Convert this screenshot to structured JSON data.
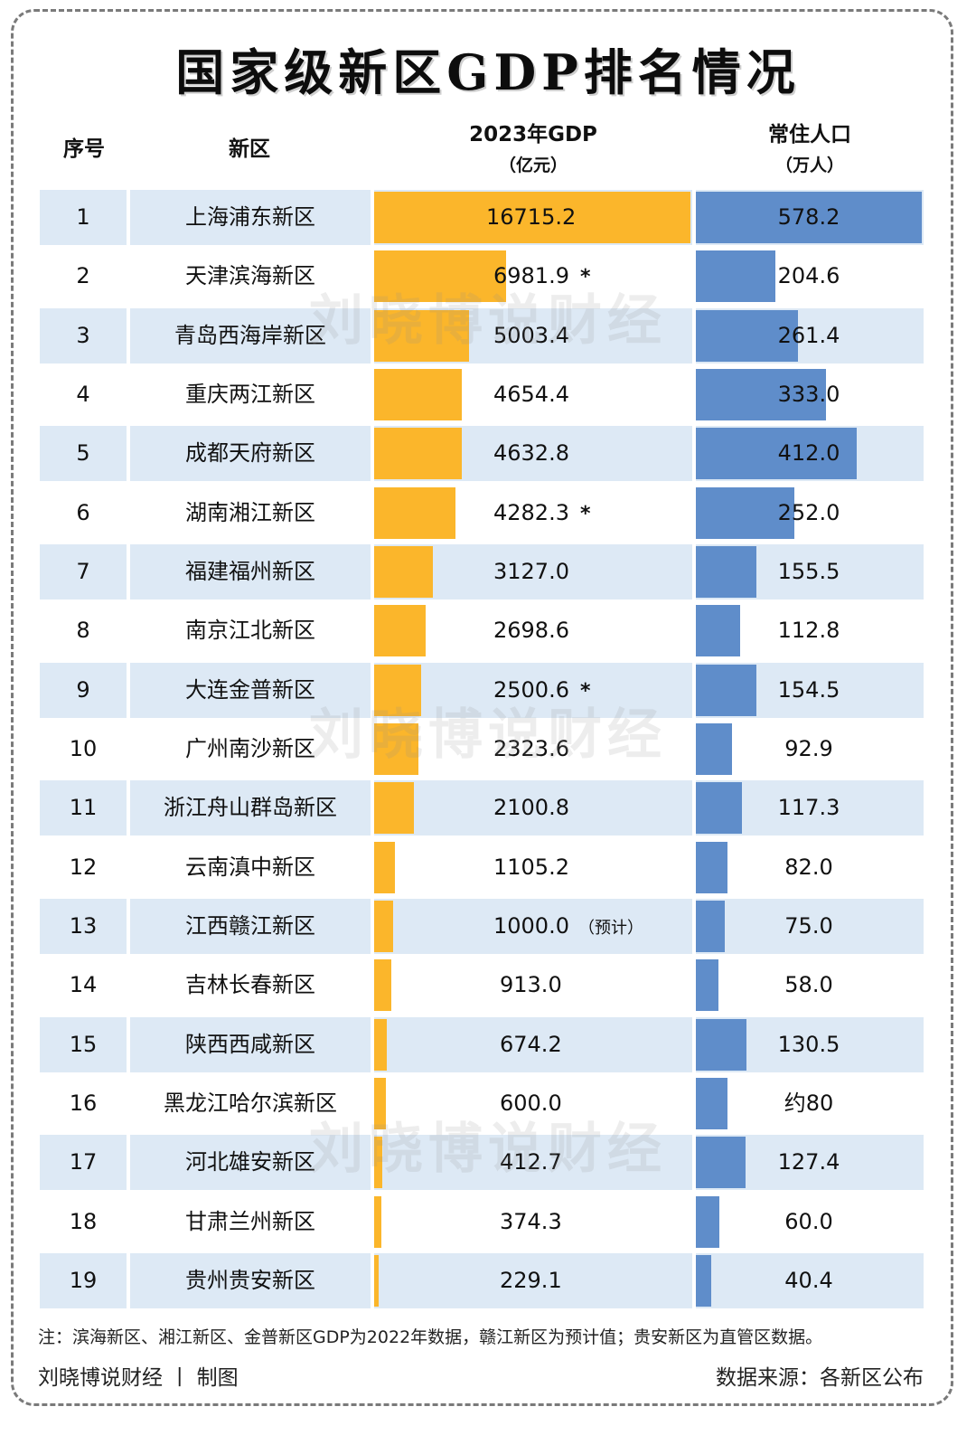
{
  "title": "国家级新区GDP排名情况",
  "headers": {
    "rank": "序号",
    "name": "新区",
    "gdp_line1": "2023年GDP",
    "gdp_line2": "（亿元）",
    "pop_line1": "常住人口",
    "pop_line2": "（万人）"
  },
  "colors": {
    "gdp_bar": "#fbb62b",
    "pop_bar": "#5f8dca",
    "row_shade": "#dde9f5"
  },
  "watermark": "刘晓博说财经",
  "chart_data": {
    "type": "table",
    "columns": [
      "序号",
      "新区",
      "2023年GDP（亿元）",
      "常住人口（万人）"
    ],
    "rows": [
      {
        "rank": "1",
        "name": "上海浦东新区",
        "gdp": 16715.2,
        "gdp_label": "16715.2",
        "gdp_mark": "",
        "gdp_note": "",
        "pop": 578.2,
        "pop_label": "578.2"
      },
      {
        "rank": "2",
        "name": "天津滨海新区",
        "gdp": 6981.9,
        "gdp_label": "6981.9",
        "gdp_mark": "*",
        "gdp_note": "",
        "pop": 204.6,
        "pop_label": "204.6"
      },
      {
        "rank": "3",
        "name": "青岛西海岸新区",
        "gdp": 5003.4,
        "gdp_label": "5003.4",
        "gdp_mark": "",
        "gdp_note": "",
        "pop": 261.4,
        "pop_label": "261.4"
      },
      {
        "rank": "4",
        "name": "重庆两江新区",
        "gdp": 4654.4,
        "gdp_label": "4654.4",
        "gdp_mark": "",
        "gdp_note": "",
        "pop": 333.0,
        "pop_label": "333.0"
      },
      {
        "rank": "5",
        "name": "成都天府新区",
        "gdp": 4632.8,
        "gdp_label": "4632.8",
        "gdp_mark": "",
        "gdp_note": "",
        "pop": 412.0,
        "pop_label": "412.0"
      },
      {
        "rank": "6",
        "name": "湖南湘江新区",
        "gdp": 4282.3,
        "gdp_label": "4282.3",
        "gdp_mark": "*",
        "gdp_note": "",
        "pop": 252.0,
        "pop_label": "252.0"
      },
      {
        "rank": "7",
        "name": "福建福州新区",
        "gdp": 3127.0,
        "gdp_label": "3127.0",
        "gdp_mark": "",
        "gdp_note": "",
        "pop": 155.5,
        "pop_label": "155.5"
      },
      {
        "rank": "8",
        "name": "南京江北新区",
        "gdp": 2698.6,
        "gdp_label": "2698.6",
        "gdp_mark": "",
        "gdp_note": "",
        "pop": 112.8,
        "pop_label": "112.8"
      },
      {
        "rank": "9",
        "name": "大连金普新区",
        "gdp": 2500.6,
        "gdp_label": "2500.6",
        "gdp_mark": "*",
        "gdp_note": "",
        "pop": 154.5,
        "pop_label": "154.5"
      },
      {
        "rank": "10",
        "name": "广州南沙新区",
        "gdp": 2323.6,
        "gdp_label": "2323.6",
        "gdp_mark": "",
        "gdp_note": "",
        "pop": 92.9,
        "pop_label": "92.9"
      },
      {
        "rank": "11",
        "name": "浙江舟山群岛新区",
        "gdp": 2100.8,
        "gdp_label": "2100.8",
        "gdp_mark": "",
        "gdp_note": "",
        "pop": 117.3,
        "pop_label": "117.3"
      },
      {
        "rank": "12",
        "name": "云南滇中新区",
        "gdp": 1105.2,
        "gdp_label": "1105.2",
        "gdp_mark": "",
        "gdp_note": "",
        "pop": 82.0,
        "pop_label": "82.0"
      },
      {
        "rank": "13",
        "name": "江西赣江新区",
        "gdp": 1000.0,
        "gdp_label": "1000.0",
        "gdp_mark": "",
        "gdp_note": "（预计）",
        "pop": 75.0,
        "pop_label": "75.0"
      },
      {
        "rank": "14",
        "name": "吉林长春新区",
        "gdp": 913.0,
        "gdp_label": "913.0",
        "gdp_mark": "",
        "gdp_note": "",
        "pop": 58.0,
        "pop_label": "58.0"
      },
      {
        "rank": "15",
        "name": "陕西西咸新区",
        "gdp": 674.2,
        "gdp_label": "674.2",
        "gdp_mark": "",
        "gdp_note": "",
        "pop": 130.5,
        "pop_label": "130.5"
      },
      {
        "rank": "16",
        "name": "黑龙江哈尔滨新区",
        "gdp": 600.0,
        "gdp_label": "600.0",
        "gdp_mark": "",
        "gdp_note": "",
        "pop": 80,
        "pop_label": "约80"
      },
      {
        "rank": "17",
        "name": "河北雄安新区",
        "gdp": 412.7,
        "gdp_label": "412.7",
        "gdp_mark": "",
        "gdp_note": "",
        "pop": 127.4,
        "pop_label": "127.4"
      },
      {
        "rank": "18",
        "name": "甘肃兰州新区",
        "gdp": 374.3,
        "gdp_label": "374.3",
        "gdp_mark": "",
        "gdp_note": "",
        "pop": 60.0,
        "pop_label": "60.0"
      },
      {
        "rank": "19",
        "name": "贵州贵安新区",
        "gdp": 229.1,
        "gdp_label": "229.1",
        "gdp_mark": "",
        "gdp_note": "",
        "pop": 40.4,
        "pop_label": "40.4"
      }
    ]
  },
  "footnote": "注：滨海新区、湘江新区、金普新区GDP为2022年数据，赣江新区为预计值；贵安新区为直管区数据。",
  "credit": "刘晓博说财经 丨 制图",
  "source": "数据来源：各新区公布"
}
